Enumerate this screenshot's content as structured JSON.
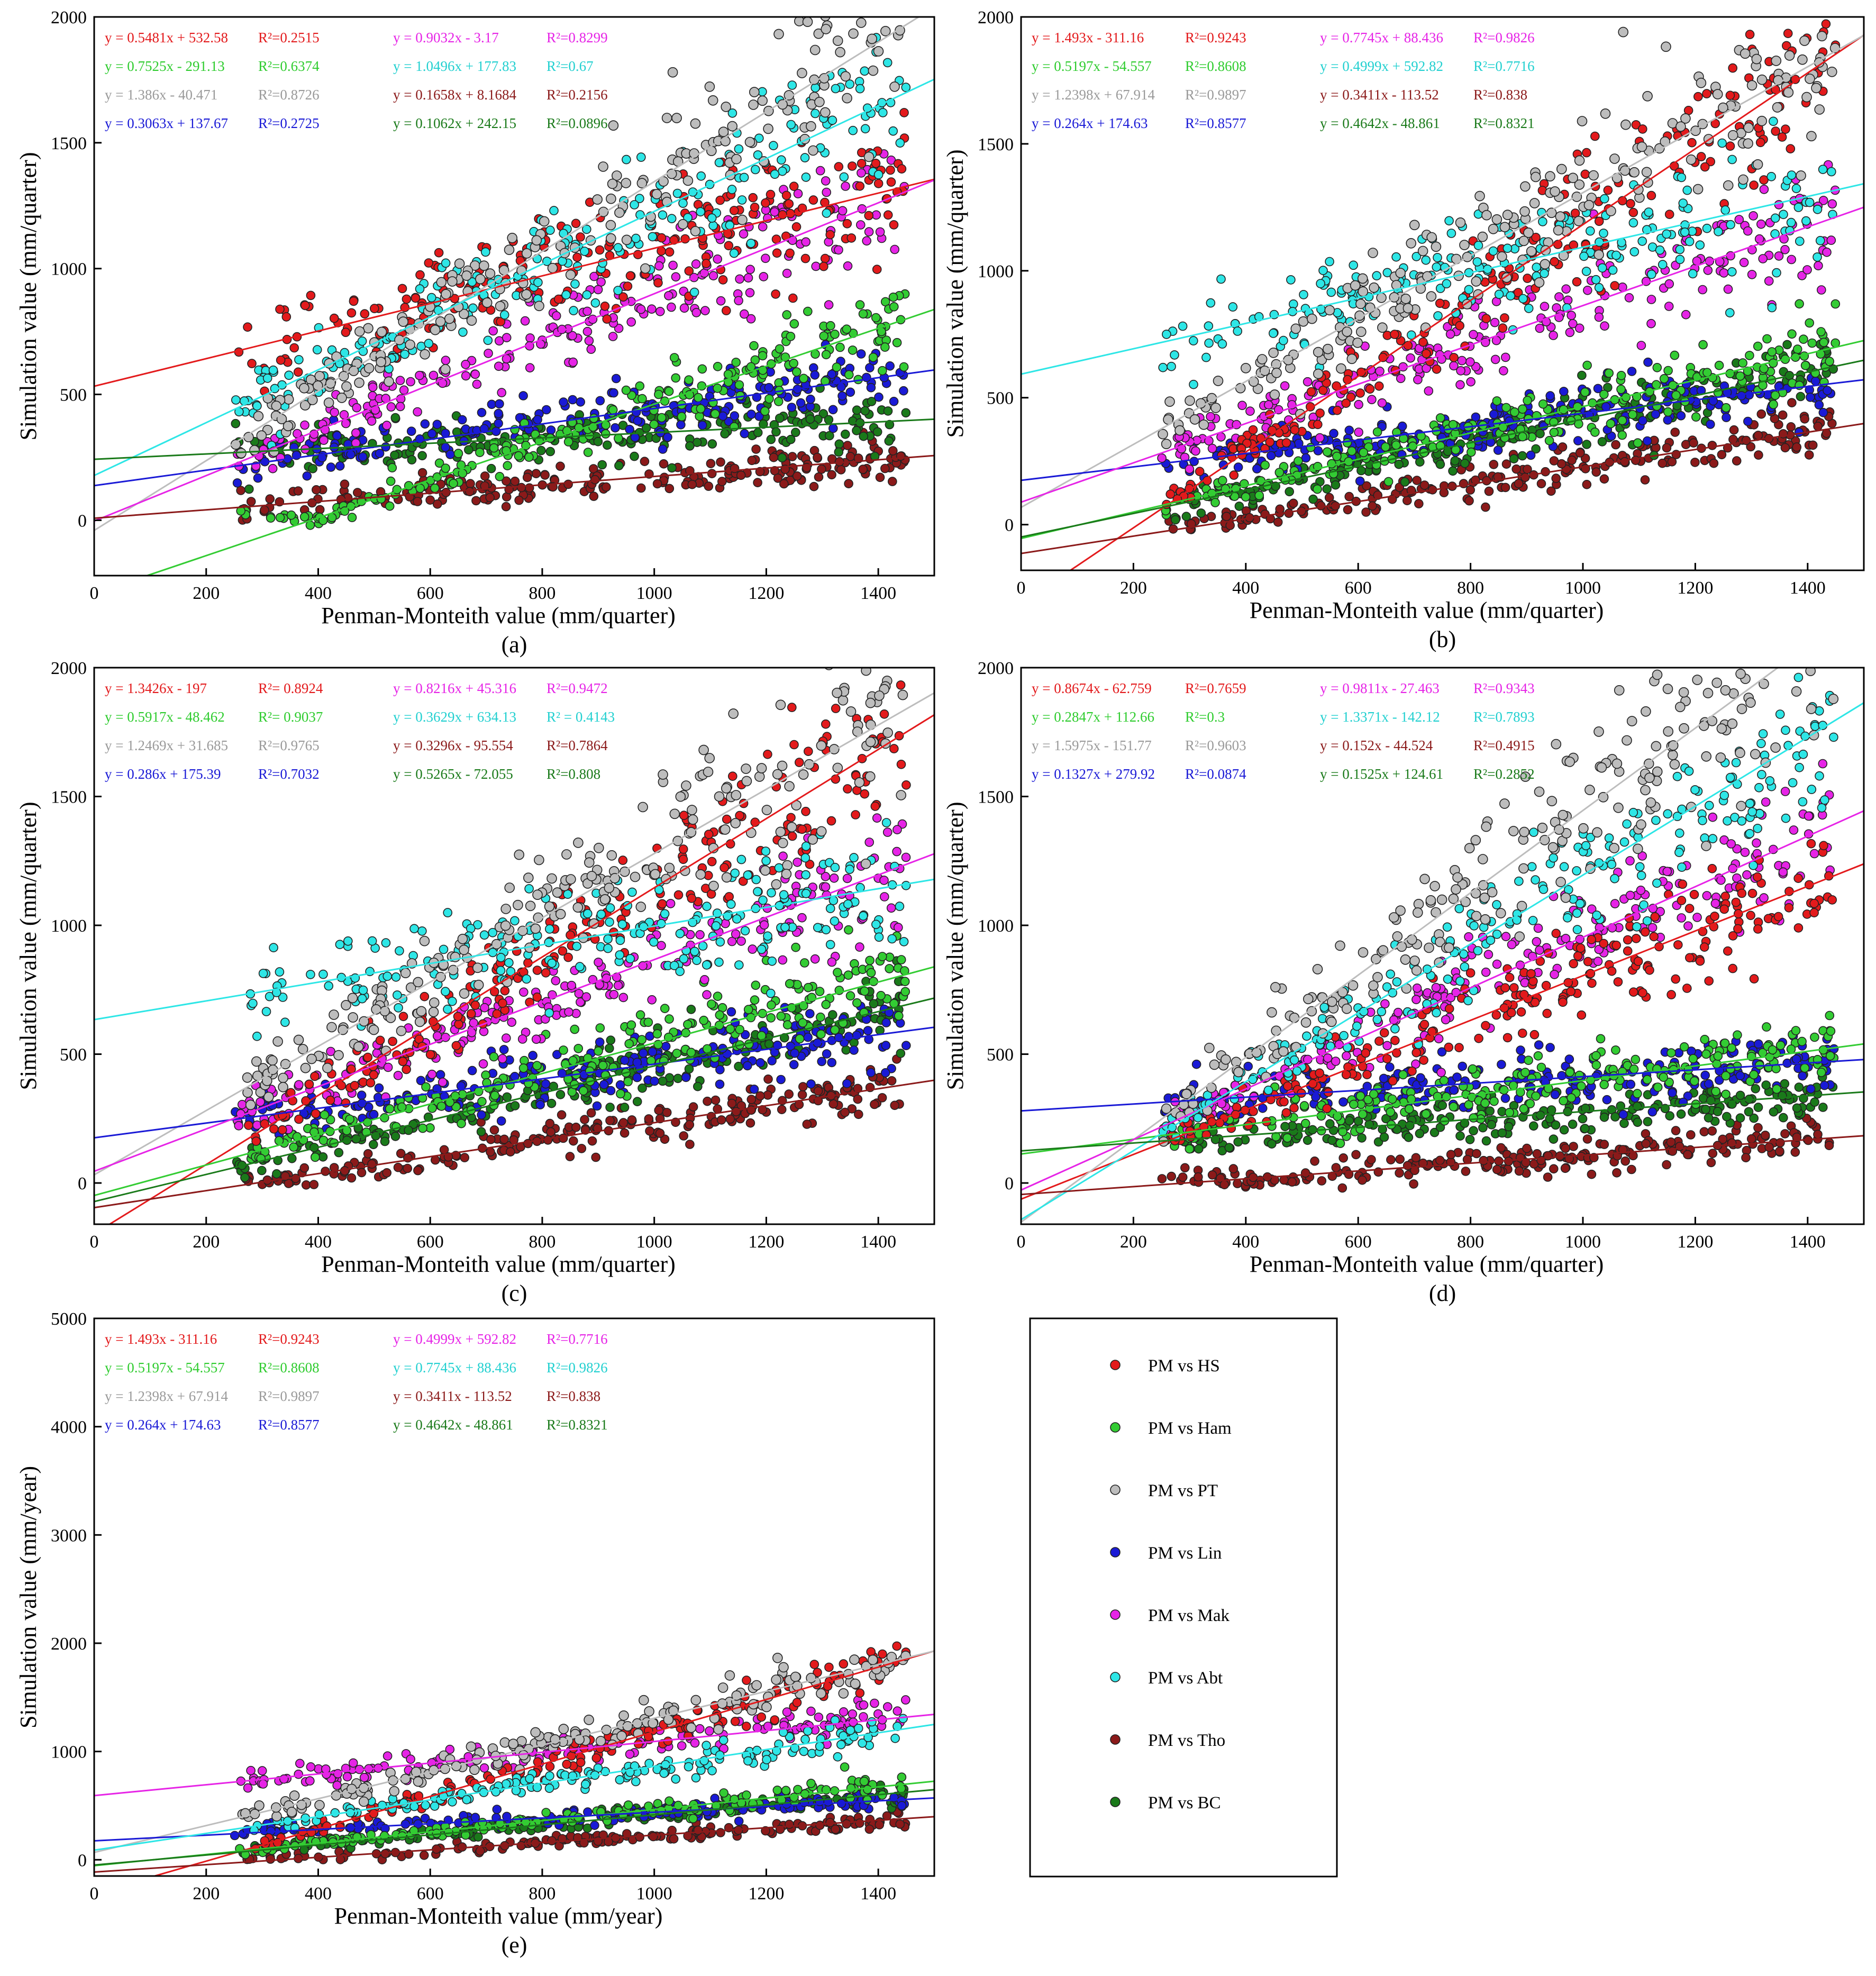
{
  "series_styles": [
    {
      "key": "HS",
      "name": "PM vs HS",
      "color": "#e31a1c",
      "text_color": "#e31a1c"
    },
    {
      "key": "Ham",
      "name": "PM vs Ham",
      "color": "#33cc33",
      "text_color": "#2fcc2f"
    },
    {
      "key": "PT",
      "name": "PM vs PT",
      "color": "#bdbdbd",
      "text_color": "#9a9a9a"
    },
    {
      "key": "Lin",
      "name": "PM vs Lin",
      "color": "#1a1ad6",
      "text_color": "#1a1ad6"
    },
    {
      "key": "Mak",
      "name": "PM vs Mak",
      "color": "#e624e6",
      "text_color": "#e624e6"
    },
    {
      "key": "Abt",
      "name": "PM vs Abt",
      "color": "#2ee6e6",
      "text_color": "#22d0d0"
    },
    {
      "key": "Tho",
      "name": "PM vs Tho",
      "color": "#8b1a1a",
      "text_color": "#8b1a1a"
    },
    {
      "key": "BC",
      "name": "PM vs BC",
      "color": "#1a7a1a",
      "text_color": "#1a7a1a"
    }
  ],
  "legend": {
    "entries": [
      "PM vs HS",
      "PM vs Ham",
      "PM vs PT",
      "PM vs Lin",
      "PM vs Mak",
      "PM vs Abt",
      "PM vs Tho",
      "PM vs BC"
    ]
  },
  "chart_data": [
    {
      "type": "scatter",
      "panel_label": "(a)",
      "xlabel": "Penman-Monteith value (mm/quarter)",
      "ylabel": "Simulation value (mm/quarter)",
      "xlim": [
        0,
        1500
      ],
      "ylim": [
        -220,
        2000
      ],
      "xticks": [
        0,
        200,
        400,
        600,
        800,
        1000,
        1200,
        1400
      ],
      "xtick_labels": [
        "0",
        "200",
        "400",
        "600",
        "800",
        "1000",
        "1200",
        "1400"
      ],
      "yticks": [
        0,
        500,
        1000,
        1500,
        2000
      ],
      "ytick_labels": [
        "0",
        "500",
        "1000",
        "1500",
        "2000"
      ],
      "series": [
        {
          "key": "HS",
          "slope": 0.5481,
          "intercept": 532.58,
          "equation": "y = 0.5481x + 532.58",
          "r2": "R²=0.2515"
        },
        {
          "key": "Ham",
          "slope": 0.7525,
          "intercept": -291.13,
          "equation": "y = 0.7525x - 291.13",
          "r2": "R²=0.6374"
        },
        {
          "key": "PT",
          "slope": 1.386,
          "intercept": -40.471,
          "equation": "y = 1.386x - 40.471",
          "r2": "R²=0.8726"
        },
        {
          "key": "Lin",
          "slope": 0.3063,
          "intercept": 137.67,
          "equation": "y = 0.3063x + 137.67",
          "r2": "R²=0.2725"
        },
        {
          "key": "Mak",
          "slope": 0.9032,
          "intercept": -3.17,
          "equation": "y = 0.9032x - 3.17",
          "r2": "R²=0.8299"
        },
        {
          "key": "Abt",
          "slope": 1.0496,
          "intercept": 177.83,
          "equation": "y = 1.0496x + 177.83",
          "r2": "R²=0.67"
        },
        {
          "key": "Tho",
          "slope": 0.1658,
          "intercept": 8.1684,
          "equation": "y = 0.1658x + 8.1684",
          "r2": "R²=0.2156"
        },
        {
          "key": "BC",
          "slope": 0.1062,
          "intercept": 242.15,
          "equation": "y = 0.1062x + 242.15",
          "r2": "R²=0.0896"
        }
      ]
    },
    {
      "type": "scatter",
      "panel_label": "(b)",
      "xlabel": "Penman-Monteith value (mm/quarter)",
      "ylabel": "Simulation value (mm/quarter)",
      "xlim": [
        0,
        1500
      ],
      "ylim": [
        -180,
        2000
      ],
      "xticks": [
        0,
        200,
        400,
        600,
        800,
        1000,
        1200,
        1400
      ],
      "xtick_labels": [
        "0",
        "200",
        "400",
        "600",
        "800",
        "1000",
        "1200",
        "1400"
      ],
      "yticks": [
        0,
        500,
        1000,
        1500,
        2000
      ],
      "ytick_labels": [
        "0",
        "500",
        "1000",
        "1500",
        "2000"
      ],
      "series": [
        {
          "key": "HS",
          "slope": 1.493,
          "intercept": -311.16,
          "equation": "y = 1.493x - 311.16",
          "r2": "R²=0.9243"
        },
        {
          "key": "Ham",
          "slope": 0.5197,
          "intercept": -54.557,
          "equation": "y = 0.5197x - 54.557",
          "r2": "R²=0.8608"
        },
        {
          "key": "PT",
          "slope": 1.2398,
          "intercept": 67.914,
          "equation": "y = 1.2398x + 67.914",
          "r2": "R²=0.9897"
        },
        {
          "key": "Lin",
          "slope": 0.264,
          "intercept": 174.63,
          "equation": "y = 0.264x + 174.63",
          "r2": "R²=0.8577"
        },
        {
          "key": "Mak",
          "slope": 0.7745,
          "intercept": 88.436,
          "equation": "y = 0.7745x + 88.436",
          "r2": "R²=0.9826"
        },
        {
          "key": "Abt",
          "slope": 0.4999,
          "intercept": 592.82,
          "equation": "y = 0.4999x + 592.82",
          "r2": "R²=0.7716"
        },
        {
          "key": "Tho",
          "slope": 0.3411,
          "intercept": -113.52,
          "equation": "y = 0.3411x - 113.52",
          "r2": "R²=0.838"
        },
        {
          "key": "BC",
          "slope": 0.4642,
          "intercept": -48.861,
          "equation": "y = 0.4642x - 48.861",
          "r2": "R²=0.8321"
        }
      ]
    },
    {
      "type": "scatter",
      "panel_label": "(c)",
      "xlabel": "Penman-Monteith value (mm/quarter)",
      "ylabel": "Simulation value (mm/quarter)",
      "xlim": [
        0,
        1500
      ],
      "ylim": [
        -160,
        2000
      ],
      "xticks": [
        0,
        200,
        400,
        600,
        800,
        1000,
        1200,
        1400
      ],
      "xtick_labels": [
        "0",
        "200",
        "400",
        "600",
        "800",
        "1000",
        "1200",
        "1400"
      ],
      "yticks": [
        0,
        500,
        1000,
        1500,
        2000
      ],
      "ytick_labels": [
        "0",
        "500",
        "1000",
        "1500",
        "2000"
      ],
      "series": [
        {
          "key": "HS",
          "slope": 1.3426,
          "intercept": -197,
          "equation": "y = 1.3426x - 197",
          "r2": "R²= 0.8924"
        },
        {
          "key": "Ham",
          "slope": 0.5917,
          "intercept": -48.462,
          "equation": "y = 0.5917x - 48.462",
          "r2": "R²= 0.9037"
        },
        {
          "key": "PT",
          "slope": 1.2469,
          "intercept": 31.685,
          "equation": "y = 1.2469x + 31.685",
          "r2": "R²=0.9765"
        },
        {
          "key": "Lin",
          "slope": 0.286,
          "intercept": 175.39,
          "equation": "y = 0.286x + 175.39",
          "r2": "R²=0.7032"
        },
        {
          "key": "Mak",
          "slope": 0.8216,
          "intercept": 45.316,
          "equation": "y = 0.8216x + 45.316",
          "r2": "R²=0.9472"
        },
        {
          "key": "Abt",
          "slope": 0.3629,
          "intercept": 634.13,
          "equation": "y = 0.3629x + 634.13",
          "r2": "R² = 0.4143"
        },
        {
          "key": "Tho",
          "slope": 0.3296,
          "intercept": -95.554,
          "equation": "y = 0.3296x - 95.554",
          "r2": "R²=0.7864"
        },
        {
          "key": "BC",
          "slope": 0.5265,
          "intercept": -72.055,
          "equation": "y = 0.5265x - 72.055",
          "r2": "R²=0.808"
        }
      ]
    },
    {
      "type": "scatter",
      "panel_label": "(d)",
      "xlabel": "Penman-Monteith value (mm/quarter)",
      "ylabel": "Simulation value (mm/quarter)",
      "xlim": [
        0,
        1500
      ],
      "ylim": [
        -160,
        2000
      ],
      "xticks": [
        0,
        200,
        400,
        600,
        800,
        1000,
        1200,
        1400
      ],
      "xtick_labels": [
        "0",
        "200",
        "400",
        "600",
        "800",
        "1000",
        "1200",
        "1400"
      ],
      "yticks": [
        0,
        500,
        1000,
        1500,
        2000
      ],
      "ytick_labels": [
        "0",
        "500",
        "1000",
        "1500",
        "2000"
      ],
      "series": [
        {
          "key": "HS",
          "slope": 0.8674,
          "intercept": -62.759,
          "equation": "y = 0.8674x - 62.759",
          "r2": "R²=0.7659"
        },
        {
          "key": "Ham",
          "slope": 0.2847,
          "intercept": 112.66,
          "equation": "y = 0.2847x + 112.66",
          "r2": "R²=0.3"
        },
        {
          "key": "PT",
          "slope": 1.5975,
          "intercept": -151.77,
          "equation": "y = 1.5975x - 151.77",
          "r2": "R²=0.9603"
        },
        {
          "key": "Lin",
          "slope": 0.1327,
          "intercept": 279.92,
          "equation": "y = 0.1327x + 279.92",
          "r2": "R²=0.0874"
        },
        {
          "key": "Mak",
          "slope": 0.9811,
          "intercept": -27.463,
          "equation": "y = 0.9811x - 27.463",
          "r2": "R²=0.9343"
        },
        {
          "key": "Abt",
          "slope": 1.3371,
          "intercept": -142.12,
          "equation": "y = 1.3371x - 142.12",
          "r2": "R²=0.7893"
        },
        {
          "key": "Tho",
          "slope": 0.152,
          "intercept": -44.524,
          "equation": "y = 0.152x - 44.524",
          "r2": "R²=0.4915"
        },
        {
          "key": "BC",
          "slope": 0.1525,
          "intercept": 124.61,
          "equation": "y = 0.1525x + 124.61",
          "r2": "R²=0.2852"
        }
      ]
    },
    {
      "type": "scatter",
      "panel_label": "(e)",
      "xlabel": "Penman-Monteith value (mm/year)",
      "ylabel": "Simulation value (mm/year)",
      "xlim": [
        0,
        1500
      ],
      "ylim": [
        -150,
        5000
      ],
      "xticks": [
        0,
        200,
        400,
        600,
        800,
        1000,
        1200,
        1400
      ],
      "xtick_labels": [
        "0",
        "200",
        "400",
        "600",
        "800",
        "1000",
        "1200",
        "1400"
      ],
      "yticks": [
        0,
        1000,
        2000,
        3000,
        4000,
        5000
      ],
      "ytick_labels": [
        "0",
        "1000",
        "2000",
        "3000",
        "4000",
        "5000"
      ],
      "series": [
        {
          "key": "HS",
          "slope": 1.493,
          "intercept": -311.16,
          "equation": "y = 1.493x - 311.16",
          "r2": "R²=0.9243"
        },
        {
          "key": "Ham",
          "slope": 0.5197,
          "intercept": -54.557,
          "equation": "y = 0.5197x - 54.557",
          "r2": "R²=0.8608"
        },
        {
          "key": "PT",
          "slope": 1.2398,
          "intercept": 67.914,
          "equation": "y = 1.2398x + 67.914",
          "r2": "R²=0.9897"
        },
        {
          "key": "Lin",
          "slope": 0.264,
          "intercept": 174.63,
          "equation": "y = 0.264x + 174.63",
          "r2": "R²=0.8577"
        },
        {
          "key": "Mak",
          "slope": 0.4999,
          "intercept": 592.82,
          "equation": "y = 0.4999x + 592.82",
          "r2": "R²=0.7716"
        },
        {
          "key": "Abt",
          "slope": 0.7745,
          "intercept": 88.436,
          "equation": "y = 0.7745x + 88.436",
          "r2": "R²=0.9826"
        },
        {
          "key": "Tho",
          "slope": 0.3411,
          "intercept": -113.52,
          "equation": "y = 0.3411x - 113.52",
          "r2": "R²=0.838"
        },
        {
          "key": "BC",
          "slope": 0.4642,
          "intercept": -48.861,
          "equation": "y = 0.4642x - 48.861",
          "r2": "R²=0.8321"
        }
      ]
    }
  ]
}
